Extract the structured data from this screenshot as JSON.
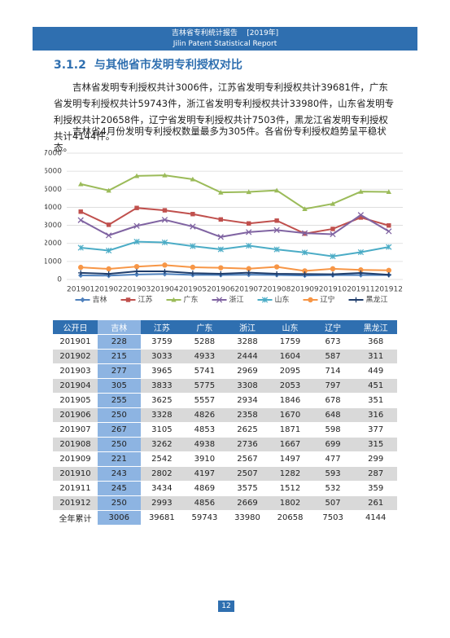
{
  "header": {
    "title": "吉林省专利统计报告    [2019年]",
    "subtitle": "Jilin Patent Statistical Report"
  },
  "section": {
    "number": "3.1.2",
    "title": "与其他省市发明专利授权对比"
  },
  "paragraphs": [
    "吉林省发明专利授权共计3006件，江苏省发明专利授权共计39681件，广东省发明专利授权共计59743件，浙江省发明专利授权共计33980件，山东省发明专利授权共计20658件，辽宁省发明专利授权共计7503件，黑龙江省发明专利授权共计4144件。",
    "吉林省4月份发明专利授权数量最多为305件。各省份专利授权趋势呈平稳状态。"
  ],
  "chart_data": {
    "type": "line",
    "categories": [
      "201901",
      "201902",
      "201903",
      "201904",
      "201905",
      "201906",
      "201907",
      "201908",
      "201909",
      "201910",
      "201911",
      "201912"
    ],
    "series": [
      {
        "name": "吉林",
        "color": "#4f81bd",
        "marker": "diamond",
        "values": [
          228,
          215,
          277,
          305,
          255,
          250,
          267,
          250,
          221,
          243,
          245,
          250
        ]
      },
      {
        "name": "江苏",
        "color": "#c0504d",
        "marker": "square",
        "values": [
          3759,
          3033,
          3965,
          3833,
          3625,
          3328,
          3105,
          3262,
          2542,
          2802,
          3434,
          2993
        ]
      },
      {
        "name": "广东",
        "color": "#9bbb59",
        "marker": "triangle",
        "values": [
          5288,
          4933,
          5741,
          5775,
          5557,
          4826,
          4853,
          4938,
          3910,
          4197,
          4869,
          4856
        ]
      },
      {
        "name": "浙江",
        "color": "#8064a2",
        "marker": "x",
        "values": [
          3288,
          2444,
          2969,
          3308,
          2934,
          2358,
          2625,
          2736,
          2567,
          2507,
          3575,
          2669
        ]
      },
      {
        "name": "山东",
        "color": "#4bacc6",
        "marker": "star",
        "values": [
          1759,
          1604,
          2095,
          2053,
          1846,
          1670,
          1871,
          1667,
          1497,
          1282,
          1512,
          1802
        ]
      },
      {
        "name": "辽宁",
        "color": "#f79646",
        "marker": "circle",
        "values": [
          673,
          587,
          714,
          797,
          678,
          648,
          598,
          699,
          477,
          593,
          532,
          507
        ]
      },
      {
        "name": "黑龙江",
        "color": "#1f3d6b",
        "marker": "plus",
        "values": [
          368,
          311,
          449,
          451,
          351,
          316,
          377,
          315,
          299,
          287,
          359,
          261
        ]
      }
    ],
    "ylim": [
      0,
      7000
    ],
    "yticks": [
      0,
      1000,
      2000,
      3000,
      4000,
      5000,
      6000,
      7000
    ],
    "grid": true,
    "legend": "bottom"
  },
  "table": {
    "header": [
      "公开日",
      "吉林",
      "江苏",
      "广东",
      "浙江",
      "山东",
      "辽宁",
      "黑龙江"
    ],
    "rows": [
      [
        "201901",
        228,
        3759,
        5288,
        3288,
        1759,
        673,
        368
      ],
      [
        "201902",
        215,
        3033,
        4933,
        2444,
        1604,
        587,
        311
      ],
      [
        "201903",
        277,
        3965,
        5741,
        2969,
        2095,
        714,
        449
      ],
      [
        "201904",
        305,
        3833,
        5775,
        3308,
        2053,
        797,
        451
      ],
      [
        "201905",
        255,
        3625,
        5557,
        2934,
        1846,
        678,
        351
      ],
      [
        "201906",
        250,
        3328,
        4826,
        2358,
        1670,
        648,
        316
      ],
      [
        "201907",
        267,
        3105,
        4853,
        2625,
        1871,
        598,
        377
      ],
      [
        "201908",
        250,
        3262,
        4938,
        2736,
        1667,
        699,
        315
      ],
      [
        "201909",
        221,
        2542,
        3910,
        2567,
        1497,
        477,
        299
      ],
      [
        "201910",
        243,
        2802,
        4197,
        2507,
        1282,
        593,
        287
      ],
      [
        "201911",
        245,
        3434,
        4869,
        3575,
        1512,
        532,
        359
      ],
      [
        "201912",
        250,
        2993,
        4856,
        2669,
        1802,
        507,
        261
      ],
      [
        "全年累计",
        3006,
        39681,
        59743,
        33980,
        20658,
        7503,
        4144
      ]
    ]
  },
  "page_number": "12"
}
